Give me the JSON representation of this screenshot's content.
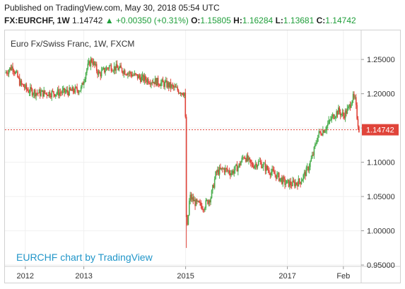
{
  "header": {
    "published": "Published on TradingView.com, May 30, 2018 05:54 UTC",
    "symbol": "FX:EURCHF, 1W",
    "last": "1.14742",
    "change_arrow": "▲",
    "change": "+0.00350 (+0.31%)",
    "open_label": "O:",
    "open": "1.15805",
    "high_label": "H:",
    "high": "1.16284",
    "low_label": "L:",
    "low": "1.13681",
    "close_label": "C:",
    "close": "1.14742",
    "up_color": "#1f9e3a"
  },
  "chart_data": {
    "type": "candlestick",
    "title": "Euro Fx/Swiss Franc, 1W, FXCM",
    "watermark": "EURCHF chart by TradingView",
    "x_ticks": [
      "2012",
      "2013",
      "2015",
      "2017",
      "Feb"
    ],
    "x_tick_times": [
      2011.85,
      2013.0,
      2015.0,
      2017.0,
      2018.1
    ],
    "x_range": [
      2011.45,
      2018.45
    ],
    "y_ticks": [
      "1.25000",
      "1.20000",
      "1.15000",
      "1.10000",
      "1.05000",
      "1.00000",
      "0.95000"
    ],
    "y_tick_values": [
      1.25,
      1.2,
      1.15,
      1.1,
      1.05,
      1.0,
      0.95
    ],
    "ylim": [
      0.948,
      1.278
    ],
    "last_price": 1.14742,
    "last_price_label": "1.14742",
    "up_color": "#4caf50",
    "down_color": "#e0443a",
    "price_path": [
      [
        2011.45,
        1.23
      ],
      [
        2011.6,
        1.24
      ],
      [
        2011.75,
        1.215
      ],
      [
        2011.9,
        1.205
      ],
      [
        2012.1,
        1.201
      ],
      [
        2012.4,
        1.201
      ],
      [
        2012.7,
        1.203
      ],
      [
        2012.95,
        1.207
      ],
      [
        2013.05,
        1.235
      ],
      [
        2013.15,
        1.25
      ],
      [
        2013.3,
        1.228
      ],
      [
        2013.5,
        1.24
      ],
      [
        2013.75,
        1.235
      ],
      [
        2013.95,
        1.228
      ],
      [
        2014.15,
        1.222
      ],
      [
        2014.4,
        1.218
      ],
      [
        2014.65,
        1.213
      ],
      [
        2014.85,
        1.205
      ],
      [
        2014.99,
        1.201
      ],
      [
        2015.02,
        0.99
      ],
      [
        2015.08,
        1.05
      ],
      [
        2015.2,
        1.04
      ],
      [
        2015.35,
        1.035
      ],
      [
        2015.5,
        1.05
      ],
      [
        2015.6,
        1.085
      ],
      [
        2015.75,
        1.09
      ],
      [
        2015.9,
        1.085
      ],
      [
        2016.05,
        1.095
      ],
      [
        2016.15,
        1.11
      ],
      [
        2016.3,
        1.095
      ],
      [
        2016.45,
        1.1
      ],
      [
        2016.6,
        1.09
      ],
      [
        2016.8,
        1.08
      ],
      [
        2016.95,
        1.07
      ],
      [
        2017.1,
        1.068
      ],
      [
        2017.25,
        1.072
      ],
      [
        2017.4,
        1.09
      ],
      [
        2017.5,
        1.11
      ],
      [
        2017.6,
        1.14
      ],
      [
        2017.75,
        1.15
      ],
      [
        2017.9,
        1.168
      ],
      [
        2018.0,
        1.175
      ],
      [
        2018.1,
        1.168
      ],
      [
        2018.2,
        1.178
      ],
      [
        2018.28,
        1.195
      ],
      [
        2018.33,
        1.19
      ],
      [
        2018.38,
        1.16
      ],
      [
        2018.41,
        1.147
      ]
    ]
  }
}
